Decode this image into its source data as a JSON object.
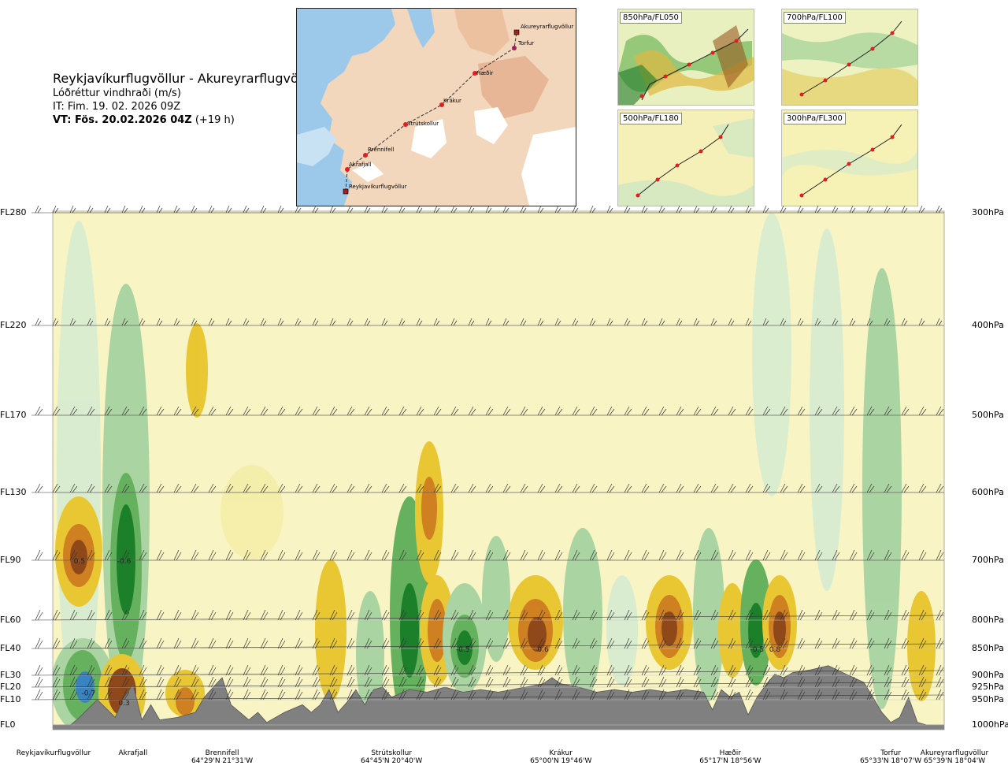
{
  "title": {
    "route": "Reykjavíkurflugvöllur - Akureyrarflugvöllur",
    "variable": "Lóðréttur vindhraði (m/s)",
    "it": "IT: Fim. 19. 02. 2026 09Z",
    "vt_bold": "VT: Fös. 20.02.2026 04Z",
    "vt_lead": "(+19 h)"
  },
  "map": {
    "points": [
      "Akureyrarflugvöllur",
      "Torfur",
      "Hæðir",
      "Krákur",
      "Strútskollur",
      "Brennifell",
      "Akrafjall",
      "Reykjavíkurflugvöllur"
    ]
  },
  "thumbnails": [
    {
      "label": "850hPa/FL050"
    },
    {
      "label": "700hPa/FL100"
    },
    {
      "label": "500hPa/FL180"
    },
    {
      "label": "300hPa/FL300"
    }
  ],
  "colors": {
    "up_strong": "#8a3f10",
    "up_mid": "#cd7a18",
    "up_low": "#e8c52c",
    "up_weak": "#f4eeaa",
    "down_weak": "#d8ecd0",
    "down_low": "#a6d3a0",
    "down_mid": "#5fae58",
    "down_strong": "#117a22",
    "terrain": "#808080",
    "background": "#f9f4c4"
  },
  "chart_data": {
    "type": "heatmap",
    "title": "Lóðréttur vindhraði (m/s)",
    "xlabel": "Reykjavíkurflugvöllur - Akureyrarflugvöllur",
    "ylabel": "Flight level",
    "levels": [
      {
        "fl": "FL0",
        "hpa": "1000hPa",
        "p": 1000
      },
      {
        "fl": "FL10",
        "hpa": "950hPa",
        "p": 950
      },
      {
        "fl": "FL20",
        "hpa": "925hPa",
        "p": 925
      },
      {
        "fl": "FL30",
        "hpa": "900hPa",
        "p": 900
      },
      {
        "fl": "FL40",
        "hpa": "850hPa",
        "p": 850
      },
      {
        "fl": "FL60",
        "hpa": "800hPa",
        "p": 800
      },
      {
        "fl": "FL90",
        "hpa": "700hPa",
        "p": 700
      },
      {
        "fl": "FL130",
        "hpa": "600hPa",
        "p": 600
      },
      {
        "fl": "FL170",
        "hpa": "500hPa",
        "p": 500
      },
      {
        "fl": "FL220",
        "hpa": "400hPa",
        "p": 400
      },
      {
        "fl": "FL280",
        "hpa": "300hPa",
        "p": 300
      }
    ],
    "distance_range": [
      0,
      100
    ],
    "waypoints": [
      {
        "name": "Reykjavíkurflugvöllur",
        "coord": "",
        "pos": 0
      },
      {
        "name": "Akrafjall",
        "coord": "",
        "pos": 9
      },
      {
        "name": "Brennifell",
        "coord": "64°29'N 21°31'W",
        "pos": 19
      },
      {
        "name": "Strútskollur",
        "coord": "64°45'N 20°40'W",
        "pos": 38
      },
      {
        "name": "Krákur",
        "coord": "65°00'N 19°46'W",
        "pos": 57
      },
      {
        "name": "Hæðir",
        "coord": "65°17'N 18°56'W",
        "pos": 76
      },
      {
        "name": "Torfur",
        "coord": "65°33'N 18°07'W",
        "pos": 94
      },
      {
        "name": "Akureyrarflugvöllur",
        "coord": "65°39'N 18°04'W",
        "pos": 100
      }
    ],
    "labeled_values": [
      {
        "value": "0.5",
        "pos": 3,
        "p": 700
      },
      {
        "value": "-0.6",
        "pos": 8,
        "p": 700
      },
      {
        "value": "-0.7",
        "pos": 4,
        "p": 935
      },
      {
        "value": "0.3",
        "pos": 8,
        "p": 955
      },
      {
        "value": "-0.5",
        "pos": 46,
        "p": 850
      },
      {
        "value": "0.6",
        "pos": 55,
        "p": 850
      },
      {
        "value": "-0.5",
        "pos": 79,
        "p": 850
      },
      {
        "value": "0.8",
        "pos": 81,
        "p": 850
      }
    ],
    "terrain_profile": [
      [
        0,
        1000
      ],
      [
        2,
        1000
      ],
      [
        3,
        985
      ],
      [
        5,
        950
      ],
      [
        7,
        985
      ],
      [
        8,
        945
      ],
      [
        9,
        920
      ],
      [
        10,
        990
      ],
      [
        11,
        960
      ],
      [
        12,
        990
      ],
      [
        14,
        985
      ],
      [
        16,
        975
      ],
      [
        17,
        945
      ],
      [
        18,
        925
      ],
      [
        19,
        905
      ],
      [
        20,
        960
      ],
      [
        22,
        990
      ],
      [
        23,
        975
      ],
      [
        24,
        995
      ],
      [
        26,
        975
      ],
      [
        28,
        960
      ],
      [
        29,
        975
      ],
      [
        30,
        960
      ],
      [
        31,
        930
      ],
      [
        32,
        975
      ],
      [
        33,
        955
      ],
      [
        34,
        930
      ],
      [
        35,
        960
      ],
      [
        36,
        930
      ],
      [
        37,
        925
      ],
      [
        38,
        945
      ],
      [
        40,
        930
      ],
      [
        42,
        935
      ],
      [
        44,
        925
      ],
      [
        46,
        935
      ],
      [
        48,
        930
      ],
      [
        50,
        935
      ],
      [
        53,
        925
      ],
      [
        55,
        918
      ],
      [
        56,
        905
      ],
      [
        57,
        918
      ],
      [
        59,
        925
      ],
      [
        61,
        935
      ],
      [
        63,
        930
      ],
      [
        65,
        935
      ],
      [
        67,
        930
      ],
      [
        69,
        935
      ],
      [
        71,
        930
      ],
      [
        73,
        935
      ],
      [
        74,
        970
      ],
      [
        75,
        930
      ],
      [
        76,
        945
      ],
      [
        77,
        935
      ],
      [
        78,
        980
      ],
      [
        79,
        945
      ],
      [
        80,
        920
      ],
      [
        81,
        898
      ],
      [
        82,
        905
      ],
      [
        83,
        895
      ],
      [
        85,
        890
      ],
      [
        87,
        882
      ],
      [
        89,
        898
      ],
      [
        91,
        915
      ],
      [
        92,
        945
      ],
      [
        93,
        975
      ],
      [
        94,
        995
      ],
      [
        95,
        985
      ],
      [
        96,
        945
      ],
      [
        97,
        995
      ],
      [
        98,
        1000
      ],
      [
        100,
        1000
      ]
    ],
    "wind_barb_levels": [
      300,
      400,
      500,
      600,
      700,
      800,
      850,
      900,
      925,
      950
    ]
  }
}
